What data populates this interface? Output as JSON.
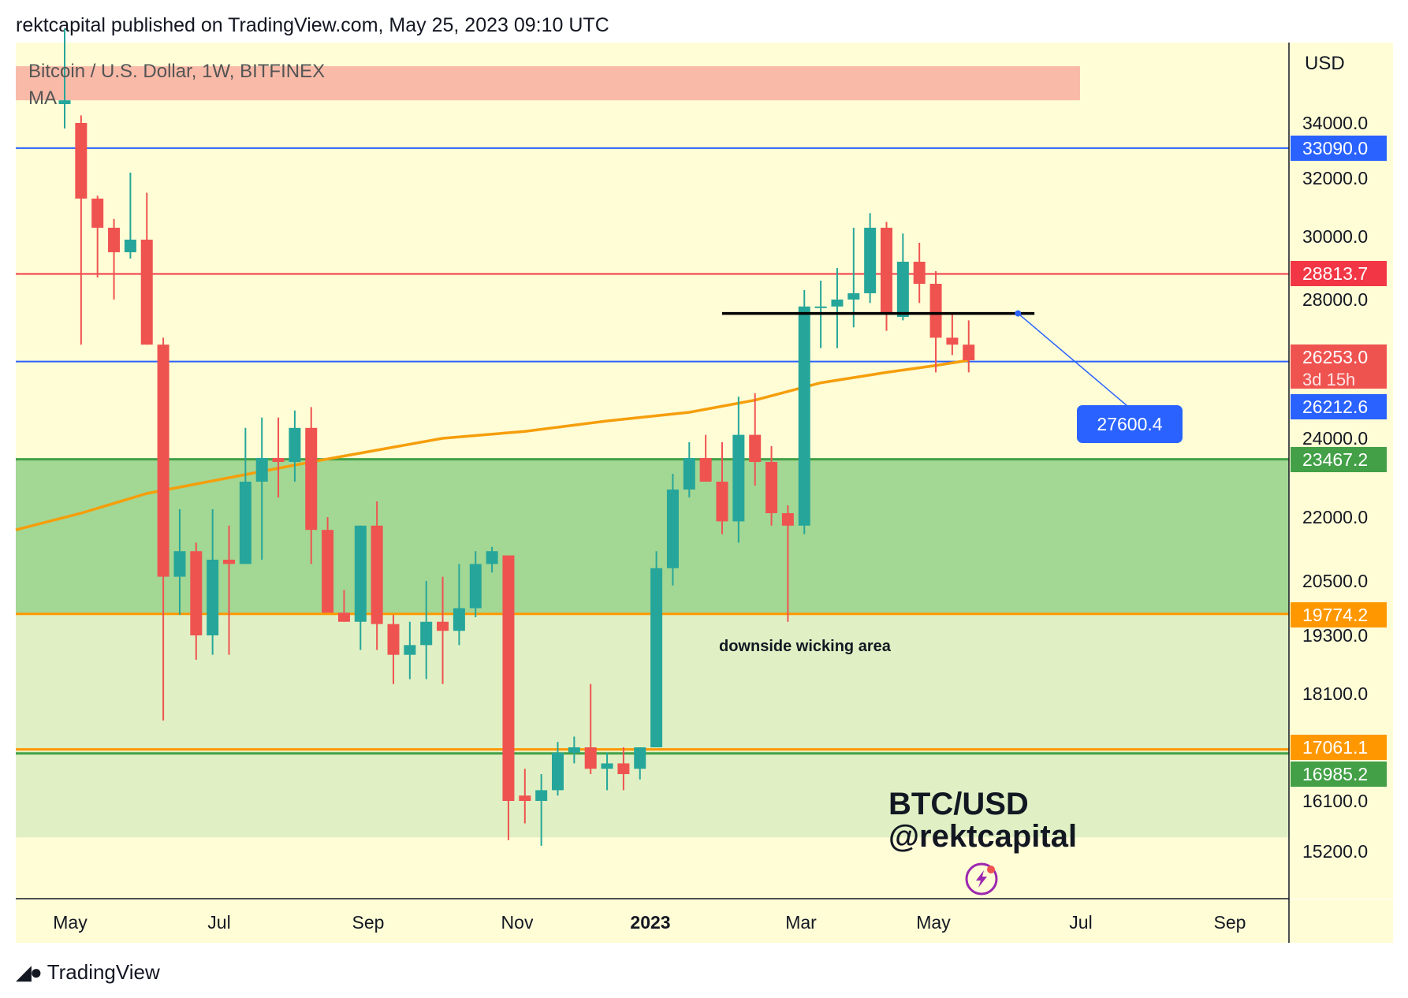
{
  "header": {
    "published": "rektcapital published on TradingView.com, May 25, 2023 09:10 UTC"
  },
  "footer": {
    "brand": "TradingView",
    "brand_icon": "tradingview-logo-icon"
  },
  "legend": {
    "symbol": "Bitcoin / U.S. Dollar, 1W, BITFINEX",
    "indicator": "MA"
  },
  "watermark": {
    "line1": "BTC/USD",
    "line2": "@rektcapital",
    "icon": "lightning-bolt-icon"
  },
  "annotation": {
    "text": "downside wicking area"
  },
  "colors": {
    "background": "#fffdd6",
    "up": "#26a69a",
    "down": "#ef5350",
    "ma": "#f59e0b",
    "zone_dark": "#a3d794",
    "zone_light": "#e0f0c4",
    "resistance_zone": "#f9bba8",
    "blue_line": "#2962ff",
    "red_line": "#f23645"
  },
  "chart_data": {
    "type": "candlestick",
    "title": "Bitcoin / U.S. Dollar, 1W, BITFINEX",
    "currency": "USD",
    "x_tick_labels": [
      "May",
      "Jul",
      "Sep",
      "Nov",
      "2023",
      "Mar",
      "May",
      "Jul",
      "Sep"
    ],
    "y_tick_labels": [
      "34000.0",
      "32000.0",
      "30000.0",
      "28000.0",
      "24000.0",
      "22000.0",
      "20500.0",
      "19300.0",
      "18100.0",
      "16100.0",
      "15200.0"
    ],
    "candles": [
      {
        "date": "2022-05-09",
        "o": 34500,
        "h": 36500,
        "l": 33800,
        "c": 34600
      },
      {
        "date": "2022-05-16",
        "o": 34000,
        "h": 34200,
        "l": 26700,
        "c": 31300
      },
      {
        "date": "2022-05-23",
        "o": 31300,
        "h": 31400,
        "l": 28700,
        "c": 30300
      },
      {
        "date": "2022-05-30",
        "o": 30300,
        "h": 30600,
        "l": 28000,
        "c": 29500
      },
      {
        "date": "2022-06-06",
        "o": 29500,
        "h": 32200,
        "l": 29300,
        "c": 29900
      },
      {
        "date": "2022-06-13",
        "o": 29900,
        "h": 31500,
        "l": 26700,
        "c": 26700
      },
      {
        "date": "2022-06-20",
        "o": 26700,
        "h": 26900,
        "l": 17600,
        "c": 20600
      },
      {
        "date": "2022-06-27",
        "o": 20600,
        "h": 22200,
        "l": 19750,
        "c": 21200
      },
      {
        "date": "2022-07-04",
        "o": 21200,
        "h": 21400,
        "l": 18800,
        "c": 19300
      },
      {
        "date": "2022-07-11",
        "o": 19300,
        "h": 22200,
        "l": 18900,
        "c": 21000
      },
      {
        "date": "2022-07-18",
        "o": 21000,
        "h": 21800,
        "l": 18900,
        "c": 20900
      },
      {
        "date": "2022-07-25",
        "o": 20900,
        "h": 24300,
        "l": 20900,
        "c": 22900
      },
      {
        "date": "2022-08-01",
        "o": 22900,
        "h": 24600,
        "l": 21000,
        "c": 23500
      },
      {
        "date": "2022-08-08",
        "o": 23500,
        "h": 24600,
        "l": 22500,
        "c": 23400
      },
      {
        "date": "2022-08-15",
        "o": 23400,
        "h": 24800,
        "l": 22900,
        "c": 24300
      },
      {
        "date": "2022-08-22",
        "o": 24300,
        "h": 24900,
        "l": 20900,
        "c": 21700
      },
      {
        "date": "2022-08-29",
        "o": 21700,
        "h": 22000,
        "l": 20000,
        "c": 19800
      },
      {
        "date": "2022-09-05",
        "o": 19800,
        "h": 20300,
        "l": 19600,
        "c": 19600
      },
      {
        "date": "2022-09-12",
        "o": 19600,
        "h": 21800,
        "l": 19000,
        "c": 21800
      },
      {
        "date": "2022-09-19",
        "o": 21800,
        "h": 22400,
        "l": 19000,
        "c": 19550
      },
      {
        "date": "2022-09-26",
        "o": 19550,
        "h": 19750,
        "l": 18300,
        "c": 18900
      },
      {
        "date": "2022-10-03",
        "o": 18900,
        "h": 19600,
        "l": 18400,
        "c": 19100
      },
      {
        "date": "2022-10-10",
        "o": 19100,
        "h": 20500,
        "l": 18400,
        "c": 19600
      },
      {
        "date": "2022-10-17",
        "o": 19600,
        "h": 20600,
        "l": 18300,
        "c": 19400
      },
      {
        "date": "2022-10-24",
        "o": 19400,
        "h": 20900,
        "l": 19100,
        "c": 19900
      },
      {
        "date": "2022-10-31",
        "o": 19900,
        "h": 21200,
        "l": 19700,
        "c": 20900
      },
      {
        "date": "2022-11-07",
        "o": 20900,
        "h": 21300,
        "l": 20700,
        "c": 21200
      },
      {
        "date": "2022-11-14",
        "o": 21100,
        "h": 21100,
        "l": 15400,
        "c": 16100
      },
      {
        "date": "2022-11-21",
        "o": 16200,
        "h": 16700,
        "l": 15700,
        "c": 16100
      },
      {
        "date": "2022-11-28",
        "o": 16100,
        "h": 16600,
        "l": 15300,
        "c": 16300
      },
      {
        "date": "2022-12-05",
        "o": 16300,
        "h": 17200,
        "l": 16200,
        "c": 17000
      },
      {
        "date": "2022-12-12",
        "o": 17000,
        "h": 17300,
        "l": 16800,
        "c": 17100
      },
      {
        "date": "2022-12-19",
        "o": 17100,
        "h": 18300,
        "l": 16600,
        "c": 16700
      },
      {
        "date": "2022-12-26",
        "o": 16700,
        "h": 17000,
        "l": 16300,
        "c": 16800
      },
      {
        "date": "2023-01-02",
        "o": 16800,
        "h": 17100,
        "l": 16300,
        "c": 16600
      },
      {
        "date": "2023-01-09",
        "o": 16700,
        "h": 17100,
        "l": 16500,
        "c": 17100
      },
      {
        "date": "2023-01-16",
        "o": 17100,
        "h": 21200,
        "l": 17100,
        "c": 20800
      },
      {
        "date": "2023-01-23",
        "o": 20800,
        "h": 23100,
        "l": 20400,
        "c": 22700
      },
      {
        "date": "2023-01-30",
        "o": 22700,
        "h": 23900,
        "l": 22500,
        "c": 23500
      },
      {
        "date": "2023-02-06",
        "o": 23500,
        "h": 24100,
        "l": 22900,
        "c": 22900
      },
      {
        "date": "2023-02-13",
        "o": 22900,
        "h": 23900,
        "l": 21600,
        "c": 21900
      },
      {
        "date": "2023-02-20",
        "o": 21900,
        "h": 25200,
        "l": 21400,
        "c": 24100
      },
      {
        "date": "2023-02-27",
        "o": 24100,
        "h": 25300,
        "l": 22800,
        "c": 23400
      },
      {
        "date": "2023-03-06",
        "o": 23400,
        "h": 23800,
        "l": 21800,
        "c": 22100
      },
      {
        "date": "2023-03-13",
        "o": 22100,
        "h": 22300,
        "l": 19600,
        "c": 21800
      },
      {
        "date": "2023-03-20",
        "o": 21800,
        "h": 28300,
        "l": 21600,
        "c": 27800
      },
      {
        "date": "2023-03-27",
        "o": 27800,
        "h": 28600,
        "l": 26600,
        "c": 27800
      },
      {
        "date": "2023-04-03",
        "o": 27800,
        "h": 29000,
        "l": 26600,
        "c": 28000
      },
      {
        "date": "2023-04-10",
        "o": 28000,
        "h": 30300,
        "l": 27200,
        "c": 28200
      },
      {
        "date": "2023-04-17",
        "o": 28200,
        "h": 30800,
        "l": 27900,
        "c": 30300
      },
      {
        "date": "2023-04-24",
        "o": 30300,
        "h": 30500,
        "l": 27100,
        "c": 27600
      },
      {
        "date": "2023-05-01",
        "o": 27500,
        "h": 30100,
        "l": 27400,
        "c": 29200
      },
      {
        "date": "2023-05-08",
        "o": 29200,
        "h": 29800,
        "l": 27900,
        "c": 28500
      },
      {
        "date": "2023-05-15",
        "o": 28500,
        "h": 28900,
        "l": 25900,
        "c": 26900
      },
      {
        "date": "2023-05-22",
        "o": 26900,
        "h": 27600,
        "l": 26400,
        "c": 26700
      },
      {
        "date": "2023-05-29",
        "o": 26700,
        "h": 27400,
        "l": 25900,
        "c": 26250
      }
    ],
    "ma": {
      "name": "MA",
      "points": [
        {
          "date": "2022-04-25",
          "v": 21700
        },
        {
          "date": "2022-05-16",
          "v": 22100
        },
        {
          "date": "2022-06-13",
          "v": 22600
        },
        {
          "date": "2022-07-18",
          "v": 23000
        },
        {
          "date": "2022-08-22",
          "v": 23400
        },
        {
          "date": "2022-09-19",
          "v": 23700
        },
        {
          "date": "2022-10-17",
          "v": 24000
        },
        {
          "date": "2022-11-21",
          "v": 24200
        },
        {
          "date": "2022-12-26",
          "v": 24500
        },
        {
          "date": "2023-01-30",
          "v": 24750
        },
        {
          "date": "2023-02-27",
          "v": 25100
        },
        {
          "date": "2023-03-27",
          "v": 25600
        },
        {
          "date": "2023-04-24",
          "v": 25900
        },
        {
          "date": "2023-05-15",
          "v": 26100
        },
        {
          "date": "2023-05-29",
          "v": 26250
        }
      ]
    },
    "levels": [
      {
        "value": 33090.0,
        "label": "33090.0",
        "color": "#2962ff",
        "kind": "line"
      },
      {
        "value": 28813.7,
        "label": "28813.7",
        "color": "#f23645",
        "kind": "line"
      },
      {
        "value": 26253.0,
        "label": "26253.0",
        "sublabel": "3d 15h",
        "color": "#ef5350",
        "kind": "last-price"
      },
      {
        "value": 26212.6,
        "label": "26212.6",
        "color": "#2962ff",
        "kind": "line"
      },
      {
        "value": 23467.2,
        "label": "23467.2",
        "color": "#43a047",
        "kind": "line"
      },
      {
        "value": 19774.2,
        "label": "19774.2",
        "color": "#ff9800",
        "kind": "line"
      },
      {
        "value": 17061.1,
        "label": "17061.1",
        "color": "#ff9800",
        "kind": "line"
      },
      {
        "value": 16985.2,
        "label": "16985.2",
        "color": "#43a047",
        "kind": "line"
      }
    ],
    "zones": [
      {
        "name": "resistance",
        "from": 35500,
        "to": 34600,
        "color": "#f9bba8"
      },
      {
        "name": "green-dark",
        "from": 23467.2,
        "to": 19774.2,
        "color": "#a3d794"
      },
      {
        "name": "green-light",
        "from": 19774.2,
        "to": 15450,
        "color": "#e0f0c4"
      }
    ],
    "horizontal_segment": {
      "value": 27600.4,
      "from": "2023-02-13",
      "to": "2023-06-26"
    },
    "callout": {
      "label": "27600.4",
      "anchor_date": "2023-06-19",
      "anchor_value": 27600.4
    }
  }
}
